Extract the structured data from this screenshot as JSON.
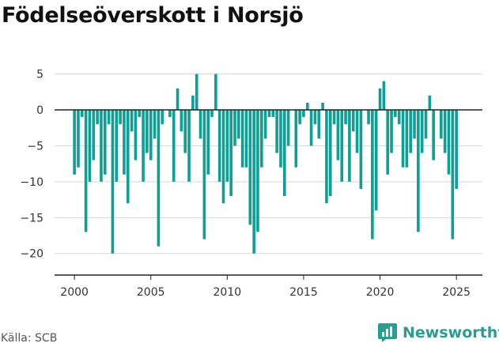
{
  "chart_data": {
    "type": "bar",
    "title": "Födelseöverskott i Norsjö",
    "xlabel": "",
    "ylabel": "",
    "x_start": 2000.0,
    "x_step": 0.25,
    "values": [
      -9,
      -8,
      -1,
      -17,
      -10,
      -7,
      -2,
      -10,
      -9,
      -2,
      -20,
      -10,
      -2,
      -9,
      -13,
      -3,
      -7,
      -1,
      -10,
      -6,
      -7,
      -4,
      -19,
      -2,
      0,
      -1,
      -10,
      3,
      -3,
      -6,
      -10,
      2,
      5,
      -4,
      -18,
      -9,
      -1,
      5,
      -10,
      -13,
      -10,
      -12,
      -5,
      -4,
      -8,
      -8,
      -16,
      -20,
      -17,
      -8,
      -4,
      -1,
      -1,
      -6,
      -8,
      -12,
      -5,
      0,
      -8,
      -2,
      -1,
      1,
      -5,
      -2,
      -4,
      1,
      -13,
      -12,
      -2,
      -7,
      -10,
      -2,
      -10,
      -3,
      -6,
      -11,
      0,
      -2,
      -18,
      -14,
      3,
      4,
      -9,
      -6,
      -1,
      -2,
      -8,
      -8,
      -6,
      -4,
      -17,
      -6,
      -4,
      2,
      -7,
      0,
      -4,
      -6,
      -9,
      -18,
      -11
    ],
    "ylim": [
      -23,
      6.5
    ],
    "xlim": [
      1998.7,
      2026.7
    ],
    "y_ticks": [
      5,
      0,
      -5,
      -10,
      -15,
      -20
    ],
    "y_tick_labels": [
      "5",
      "0",
      "−5",
      "−10",
      "−15",
      "−20"
    ],
    "x_ticks": [
      2000,
      2005,
      2010,
      2015,
      2020,
      2025
    ],
    "x_tick_labels": [
      "2000",
      "2005",
      "2010",
      "2015",
      "2020",
      "2025"
    ],
    "grid": "horizontal",
    "legend": "none"
  },
  "source": "Källa: SCB",
  "brand": {
    "name": "Newsworthy",
    "logo_icon": "bar-chart-logo-icon"
  },
  "colors": {
    "bar": "#0fa095",
    "zero_line": "#222222",
    "grid": "#d9d9d9",
    "axis": "#222222",
    "brand": "#2a9d8f"
  }
}
